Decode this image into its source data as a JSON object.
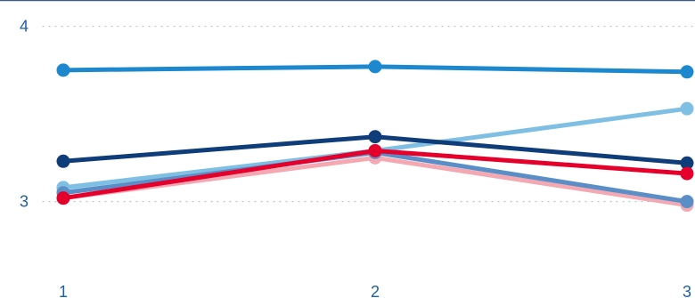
{
  "chart_data": {
    "type": "line",
    "x": [
      1,
      2,
      3
    ],
    "xticks": [
      "1",
      "2",
      "3"
    ],
    "yticks": [
      "3",
      "4"
    ],
    "ylim": [
      2.45,
      4.15
    ],
    "grid": true,
    "colors": {
      "axis_line": "#3c5e80",
      "grid": "#b9c3cc",
      "tick_text": "#1d5fa3"
    },
    "series": [
      {
        "color": "#f4a8b2",
        "values": [
          3.02,
          3.25,
          2.98
        ]
      },
      {
        "color": "#a9dcec",
        "values": [
          3.06,
          3.28,
          3.0
        ]
      },
      {
        "color": "#7fbfe3",
        "values": [
          3.08,
          3.29,
          3.53
        ]
      },
      {
        "color": "#5b8ec6",
        "values": [
          3.05,
          3.28,
          3.0
        ]
      },
      {
        "color": "#0f3d7a",
        "values": [
          3.23,
          3.37,
          3.22
        ]
      },
      {
        "color": "#e4002b",
        "values": [
          3.02,
          3.29,
          3.16
        ]
      },
      {
        "color": "#1e88cf",
        "values": [
          3.75,
          3.77,
          3.74
        ]
      }
    ]
  }
}
